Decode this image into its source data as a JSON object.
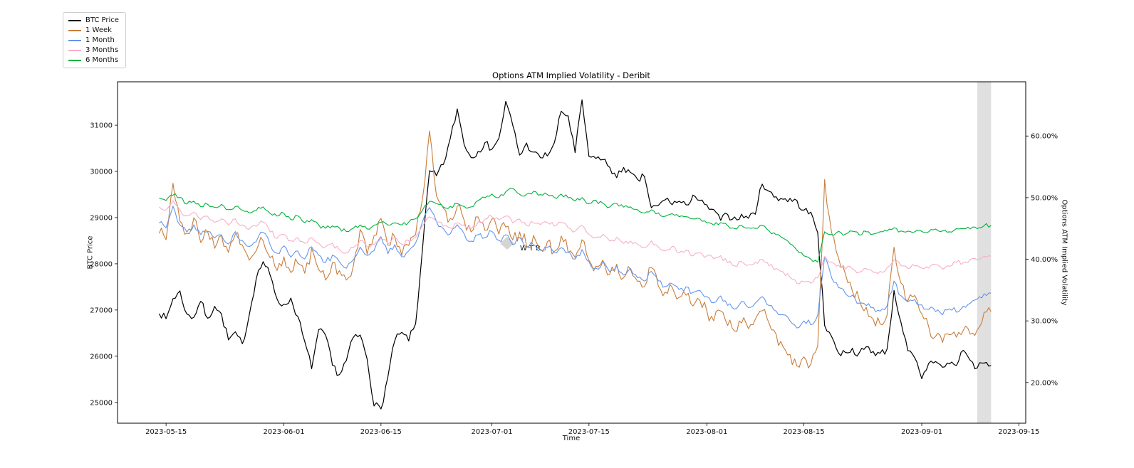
{
  "chart_data": {
    "type": "line",
    "title": "Options ATM Implied Volatility - Deribit",
    "xlabel": "Time",
    "ylabel_left": "BTC Price",
    "ylabel_right": "Options ATM Implied Volatility",
    "watermark": "WTR",
    "legend_position": "upper-left-outside",
    "grid": false,
    "x_unit": "days since 2023-05-14",
    "x_domain": [
      -6,
      125
    ],
    "x_ticks": [
      {
        "day": 1,
        "label": "2023-05-15"
      },
      {
        "day": 18,
        "label": "2023-06-01"
      },
      {
        "day": 32,
        "label": "2023-06-15"
      },
      {
        "day": 48,
        "label": "2023-07-01"
      },
      {
        "day": 62,
        "label": "2023-07-15"
      },
      {
        "day": 79,
        "label": "2023-08-01"
      },
      {
        "day": 93,
        "label": "2023-08-15"
      },
      {
        "day": 110,
        "label": "2023-09-01"
      },
      {
        "day": 124,
        "label": "2023-09-15"
      }
    ],
    "y_left": {
      "min": 24550,
      "max": 31940,
      "ticks": [
        25000,
        26000,
        27000,
        28000,
        29000,
        30000,
        31000
      ]
    },
    "y_right": {
      "min": 13.4,
      "max": 68.8,
      "ticks": [
        20,
        30,
        40,
        50,
        60
      ],
      "tick_suffix": "%",
      "tick_decimals": 2
    },
    "shaded_band": {
      "from_day": 118,
      "to_day": 120,
      "color": "#d8d8d8",
      "opacity": 0.8
    },
    "series": [
      {
        "name": "BTC Price",
        "color": "#000000",
        "axis": "left",
        "noise": 85,
        "start_day": 0,
        "step": 1,
        "values": [
          26950,
          26800,
          27250,
          27400,
          26900,
          26850,
          27200,
          26800,
          27100,
          26900,
          26350,
          26500,
          26250,
          26900,
          27700,
          28050,
          27750,
          27250,
          27100,
          27250,
          26850,
          26300,
          25750,
          26550,
          26450,
          25800,
          25600,
          25900,
          26400,
          26450,
          25950,
          24950,
          24850,
          25550,
          26350,
          26500,
          26350,
          26700,
          28350,
          30000,
          29900,
          30150,
          30700,
          31350,
          30600,
          30300,
          30450,
          30600,
          30500,
          30700,
          31500,
          31000,
          30350,
          30600,
          30400,
          30300,
          30350,
          30600,
          31300,
          31200,
          30400,
          31550,
          30300,
          30300,
          30250,
          30100,
          29850,
          30100,
          29950,
          29800,
          29900,
          29200,
          29250,
          29400,
          29300,
          29350,
          29250,
          29500,
          29350,
          29250,
          29150,
          28950,
          29050,
          29000,
          29050,
          29000,
          29100,
          29750,
          29550,
          29450,
          29400,
          29400,
          29350,
          29150,
          29100,
          28700,
          26650,
          26450,
          26050,
          26100,
          26150,
          26050,
          26200,
          26100,
          26050,
          26150,
          27400,
          26750,
          26100,
          25950,
          25500,
          25850,
          25900,
          25750,
          25850,
          25800,
          26150,
          25900,
          25750,
          25850,
          25800
        ]
      },
      {
        "name": "1 Week",
        "color": "#c97d3a",
        "axis": "right",
        "noise": 1.1,
        "start_day": 0,
        "step": 1,
        "values": [
          44.5,
          43.5,
          52.5,
          46,
          44,
          46.5,
          43,
          44.5,
          42,
          43.5,
          41,
          44.5,
          42,
          40,
          41.5,
          43,
          40.5,
          38.5,
          40.5,
          38,
          39.5,
          37.5,
          41.5,
          38.5,
          37,
          39.5,
          38,
          36.5,
          39,
          45,
          41,
          43.5,
          46.5,
          42,
          44,
          41,
          42.5,
          44,
          50,
          60.5,
          50,
          48,
          46.5,
          49,
          46,
          44.5,
          46.5,
          45,
          46.5,
          44,
          45.5,
          43,
          44.5,
          42.5,
          43.5,
          41.5,
          43,
          41,
          43.5,
          41.5,
          40,
          43,
          40,
          38.5,
          40,
          37.5,
          39,
          37,
          38.5,
          36.5,
          35.5,
          38.5,
          36,
          34.5,
          35.5,
          33.5,
          34.5,
          32.5,
          33.5,
          31.5,
          30,
          31.5,
          29.5,
          28.5,
          30,
          28.5,
          30.5,
          32,
          29.5,
          27.5,
          26,
          24.5,
          22.5,
          24,
          23,
          26,
          53,
          44,
          40,
          37.5,
          35,
          33.5,
          32,
          30.5,
          29.5,
          31,
          42,
          36,
          33,
          34,
          31,
          29,
          27.5,
          26.5,
          28,
          27,
          28.5,
          27.5,
          28.5,
          31.5,
          31.5
        ]
      },
      {
        "name": "1 Month",
        "color": "#6495ed",
        "axis": "right",
        "noise": 0.5,
        "start_day": 0,
        "step": 1,
        "values": [
          46,
          45,
          48.5,
          45.5,
          44.5,
          45.5,
          44,
          44.5,
          43.5,
          44,
          42.5,
          44.5,
          43,
          42,
          43,
          44.5,
          42.5,
          41,
          42,
          40.5,
          41.5,
          40,
          42,
          40.5,
          39.5,
          40.5,
          39.5,
          38.5,
          40,
          42,
          40.5,
          41.5,
          43.5,
          41,
          42.5,
          40.5,
          41.5,
          42.5,
          46,
          48.5,
          46,
          45,
          44,
          45.5,
          44,
          43,
          44,
          43.5,
          44.5,
          43,
          44,
          42.5,
          43.5,
          42,
          42.5,
          41.5,
          42,
          41,
          42,
          41,
          40,
          41.5,
          39.5,
          38.5,
          39.5,
          38,
          39,
          37.5,
          38.5,
          37,
          36.5,
          38,
          36.5,
          35.5,
          36,
          35,
          35.5,
          34.5,
          35,
          34,
          33,
          34,
          32.5,
          32,
          33,
          32,
          33,
          34,
          32.5,
          31.5,
          31,
          30,
          29,
          30,
          29.5,
          31,
          40.5,
          37,
          35.5,
          34.5,
          34,
          33,
          32.5,
          32,
          31.5,
          32.5,
          36.5,
          34,
          33,
          33.5,
          32.5,
          32,
          31.5,
          31,
          32,
          31.5,
          32.5,
          33,
          33.5,
          34.5,
          34.5
        ]
      },
      {
        "name": "3 Months",
        "color": "#f7afc9",
        "axis": "right",
        "noise": 0.38,
        "start_day": 0,
        "step": 1,
        "values": [
          48.5,
          48,
          49.5,
          48,
          47,
          47.5,
          46.5,
          47,
          46,
          46.5,
          45.5,
          46.5,
          45.5,
          45,
          45.5,
          46,
          44.5,
          43.5,
          44,
          43,
          43.5,
          42.5,
          43.5,
          42.5,
          42,
          42.5,
          41.5,
          41,
          42,
          43,
          42,
          42.5,
          43.5,
          42.5,
          43.5,
          42.5,
          43,
          43.5,
          45.5,
          47,
          46,
          45.5,
          45,
          46,
          45.5,
          45,
          46,
          46.5,
          47,
          46.5,
          47,
          46,
          46.5,
          45.5,
          46,
          45.5,
          46,
          45.5,
          46,
          45,
          44.5,
          45.5,
          44,
          43.5,
          44,
          43,
          43.5,
          42.5,
          43,
          42.5,
          42,
          43,
          42,
          41.5,
          42,
          41,
          41.5,
          40.5,
          41,
          40.5,
          40,
          40.5,
          39.5,
          39,
          39.5,
          39,
          39.5,
          40,
          39,
          38.5,
          38,
          37,
          36,
          36.5,
          36,
          37,
          40.5,
          39.5,
          39,
          38.5,
          38.5,
          38,
          38.5,
          38,
          38,
          38.5,
          40,
          39,
          38.5,
          39,
          38.5,
          38.5,
          39,
          38.5,
          39,
          39.5,
          39.5,
          40,
          40,
          40.5,
          40.5
        ]
      },
      {
        "name": "6 Months",
        "color": "#00b33c",
        "axis": "right",
        "noise": 0.3,
        "start_day": 0,
        "step": 1,
        "values": [
          50,
          49.5,
          50.5,
          50,
          49,
          49.5,
          48.5,
          49,
          48.5,
          49,
          48,
          48.5,
          48,
          47.5,
          48,
          48.5,
          47.5,
          47,
          47.5,
          46.5,
          47,
          46,
          46.5,
          45.5,
          45,
          45.5,
          45,
          44.5,
          45,
          45.5,
          45,
          45.5,
          46,
          45.5,
          46,
          45.5,
          46,
          46.5,
          48,
          49.5,
          49,
          48.5,
          48.5,
          49,
          48.5,
          48.5,
          49.5,
          50,
          50.5,
          50,
          51,
          51.5,
          50.5,
          50.5,
          51,
          50.5,
          50.5,
          50,
          50.5,
          50,
          49.5,
          50,
          49,
          49.5,
          49,
          48.5,
          49,
          48.5,
          48.5,
          48,
          47.5,
          48,
          47.5,
          47,
          47.5,
          47,
          47,
          46.5,
          46.5,
          46,
          45.5,
          46,
          45.5,
          45,
          45.5,
          45,
          45,
          45.5,
          44.5,
          44,
          43.5,
          42.5,
          41.5,
          40.5,
          40,
          39.5,
          44.5,
          44,
          44.5,
          44,
          44.5,
          44,
          44.5,
          44,
          44.5,
          44.5,
          45,
          44.5,
          44.5,
          44.5,
          44.5,
          44.5,
          45,
          44.5,
          44.5,
          45,
          45,
          45,
          45,
          45.5,
          45.5
        ]
      }
    ]
  }
}
